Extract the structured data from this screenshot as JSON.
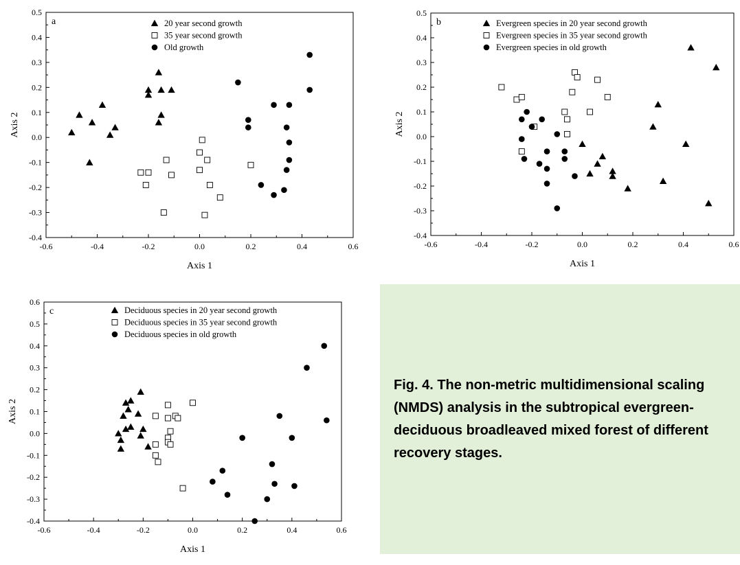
{
  "caption": "Fig. 4. The non-metric multidimensional scaling (NMDS) analysis in the subtropical evergreen-deciduous broadleaved mixed forest of different recovery stages.",
  "chart_data": [
    {
      "type": "scatter",
      "panel_label": "a",
      "xlabel": "Axis 1",
      "ylabel": "Axis 2",
      "xlim": [
        -0.6,
        0.6
      ],
      "ylim": [
        -0.4,
        0.5
      ],
      "xticks": [
        "-0.6",
        "-0.4",
        "-0.2",
        "0.0",
        "0.2",
        "0.4",
        "0.6"
      ],
      "yticks": [
        "-0.4",
        "-0.3",
        "-0.2",
        "-0.1",
        "0.0",
        "0.1",
        "0.2",
        "0.3",
        "0.4",
        "0.5"
      ],
      "legend_position": "top-center",
      "series": [
        {
          "name": "20 year second growth",
          "marker": "triangle",
          "points": [
            [
              -0.5,
              0.02
            ],
            [
              -0.47,
              0.09
            ],
            [
              -0.43,
              -0.1
            ],
            [
              -0.42,
              0.06
            ],
            [
              -0.38,
              0.13
            ],
            [
              -0.35,
              0.01
            ],
            [
              -0.33,
              0.04
            ],
            [
              -0.2,
              0.17
            ],
            [
              -0.2,
              0.19
            ],
            [
              -0.16,
              0.26
            ],
            [
              -0.15,
              0.19
            ],
            [
              -0.15,
              0.09
            ],
            [
              -0.16,
              0.06
            ],
            [
              -0.11,
              0.19
            ]
          ]
        },
        {
          "name": "35 year second growth",
          "marker": "square",
          "points": [
            [
              -0.23,
              -0.14
            ],
            [
              -0.2,
              -0.14
            ],
            [
              -0.21,
              -0.19
            ],
            [
              -0.13,
              -0.09
            ],
            [
              -0.11,
              -0.15
            ],
            [
              -0.14,
              -0.3
            ],
            [
              0.0,
              -0.06
            ],
            [
              0.01,
              -0.01
            ],
            [
              0.03,
              -0.09
            ],
            [
              0.0,
              -0.13
            ],
            [
              0.04,
              -0.19
            ],
            [
              0.08,
              -0.24
            ],
            [
              0.02,
              -0.31
            ],
            [
              0.2,
              -0.11
            ]
          ]
        },
        {
          "name": "Old growth",
          "marker": "circle",
          "points": [
            [
              0.15,
              0.22
            ],
            [
              0.19,
              0.07
            ],
            [
              0.19,
              0.04
            ],
            [
              0.29,
              0.13
            ],
            [
              0.35,
              0.13
            ],
            [
              0.34,
              0.04
            ],
            [
              0.35,
              -0.02
            ],
            [
              0.35,
              -0.09
            ],
            [
              0.34,
              -0.13
            ],
            [
              0.33,
              -0.21
            ],
            [
              0.29,
              -0.23
            ],
            [
              0.24,
              -0.19
            ],
            [
              0.43,
              0.33
            ],
            [
              0.43,
              0.19
            ]
          ]
        }
      ]
    },
    {
      "type": "scatter",
      "panel_label": "b",
      "xlabel": "Axis 1",
      "ylabel": "Axis 2",
      "xlim": [
        -0.6,
        0.6
      ],
      "ylim": [
        -0.4,
        0.5
      ],
      "xticks": [
        "-0.6",
        "-0.4",
        "-0.2",
        "0.0",
        "0.2",
        "0.4",
        "0.6"
      ],
      "yticks": [
        "-0.4",
        "-0.3",
        "-0.2",
        "-0.1",
        "0.0",
        "0.1",
        "0.2",
        "0.3",
        "0.4",
        "0.5"
      ],
      "legend_position": "top-left",
      "series": [
        {
          "name": "Evergreen species in 20 year second growth",
          "marker": "triangle",
          "points": [
            [
              0.43,
              0.36
            ],
            [
              0.53,
              0.28
            ],
            [
              0.3,
              0.13
            ],
            [
              0.28,
              0.04
            ],
            [
              0.41,
              -0.03
            ],
            [
              0.0,
              -0.03
            ],
            [
              0.08,
              -0.08
            ],
            [
              0.06,
              -0.11
            ],
            [
              0.03,
              -0.15
            ],
            [
              0.12,
              -0.14
            ],
            [
              0.12,
              -0.16
            ],
            [
              0.18,
              -0.21
            ],
            [
              0.32,
              -0.18
            ],
            [
              0.5,
              -0.27
            ]
          ]
        },
        {
          "name": "Evergreen species in 35 year second growth",
          "marker": "square",
          "points": [
            [
              -0.32,
              0.2
            ],
            [
              -0.26,
              0.15
            ],
            [
              -0.24,
              0.16
            ],
            [
              -0.19,
              0.04
            ],
            [
              -0.03,
              0.26
            ],
            [
              -0.02,
              0.24
            ],
            [
              -0.04,
              0.18
            ],
            [
              0.06,
              0.23
            ],
            [
              0.1,
              0.16
            ],
            [
              0.03,
              0.1
            ],
            [
              -0.07,
              0.1
            ],
            [
              -0.06,
              0.07
            ],
            [
              -0.06,
              0.01
            ],
            [
              -0.24,
              -0.06
            ]
          ]
        },
        {
          "name": "Evergreen species in old growth",
          "marker": "circle",
          "points": [
            [
              -0.22,
              0.1
            ],
            [
              -0.24,
              0.07
            ],
            [
              -0.24,
              -0.01
            ],
            [
              -0.16,
              0.07
            ],
            [
              -0.2,
              0.04
            ],
            [
              -0.1,
              0.01
            ],
            [
              -0.23,
              -0.09
            ],
            [
              -0.14,
              -0.06
            ],
            [
              -0.17,
              -0.11
            ],
            [
              -0.14,
              -0.13
            ],
            [
              -0.07,
              -0.06
            ],
            [
              -0.07,
              -0.09
            ],
            [
              -0.03,
              -0.16
            ],
            [
              -0.14,
              -0.19
            ],
            [
              -0.1,
              -0.29
            ]
          ]
        }
      ]
    },
    {
      "type": "scatter",
      "panel_label": "c",
      "xlabel": "Axis 1",
      "ylabel": "Axis 2",
      "xlim": [
        -0.6,
        0.6
      ],
      "ylim": [
        -0.4,
        0.6
      ],
      "xticks": [
        "-0.6",
        "-0.4",
        "-0.2",
        "0.0",
        "0.2",
        "0.4",
        "0.6"
      ],
      "yticks": [
        "-0.4",
        "-0.3",
        "-0.2",
        "-0.1",
        "0.0",
        "0.1",
        "0.2",
        "0.3",
        "0.4",
        "0.5",
        "0.6"
      ],
      "legend_position": "top-left",
      "series": [
        {
          "name": "Deciduous species in 20 year second growth",
          "marker": "triangle",
          "points": [
            [
              -0.3,
              0.0
            ],
            [
              -0.29,
              -0.03
            ],
            [
              -0.29,
              -0.07
            ],
            [
              -0.28,
              0.08
            ],
            [
              -0.27,
              0.14
            ],
            [
              -0.26,
              0.11
            ],
            [
              -0.25,
              0.15
            ],
            [
              -0.25,
              0.03
            ],
            [
              -0.27,
              0.02
            ],
            [
              -0.22,
              0.09
            ],
            [
              -0.21,
              0.19
            ],
            [
              -0.2,
              0.02
            ],
            [
              -0.21,
              -0.01
            ],
            [
              -0.18,
              -0.06
            ]
          ]
        },
        {
          "name": "Deciduous species in 35 year second growth",
          "marker": "square",
          "points": [
            [
              -0.15,
              0.08
            ],
            [
              -0.1,
              0.13
            ],
            [
              -0.1,
              0.07
            ],
            [
              -0.07,
              0.08
            ],
            [
              -0.06,
              0.07
            ],
            [
              0.0,
              0.14
            ],
            [
              -0.09,
              0.01
            ],
            [
              -0.1,
              -0.02
            ],
            [
              -0.1,
              -0.04
            ],
            [
              -0.09,
              -0.05
            ],
            [
              -0.15,
              -0.05
            ],
            [
              -0.15,
              -0.1
            ],
            [
              -0.14,
              -0.13
            ],
            [
              -0.04,
              -0.25
            ]
          ]
        },
        {
          "name": "Deciduous species in old growth",
          "marker": "circle",
          "points": [
            [
              0.53,
              0.4
            ],
            [
              0.46,
              0.3
            ],
            [
              0.54,
              0.06
            ],
            [
              0.35,
              0.08
            ],
            [
              0.2,
              -0.02
            ],
            [
              0.4,
              -0.02
            ],
            [
              0.32,
              -0.14
            ],
            [
              0.33,
              -0.23
            ],
            [
              0.41,
              -0.24
            ],
            [
              0.12,
              -0.17
            ],
            [
              0.08,
              -0.22
            ],
            [
              0.14,
              -0.28
            ],
            [
              0.3,
              -0.3
            ],
            [
              0.25,
              -0.4
            ]
          ]
        }
      ]
    }
  ]
}
